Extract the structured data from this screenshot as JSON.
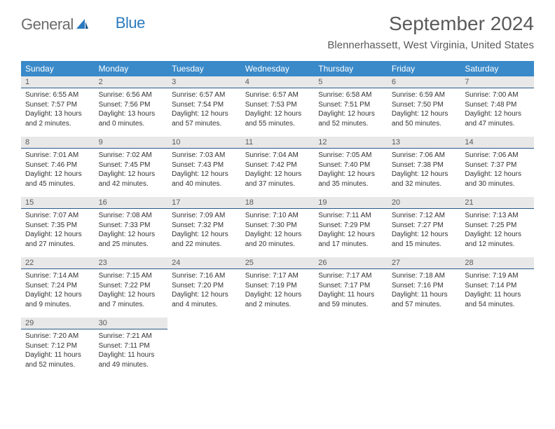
{
  "logo": {
    "text1": "General",
    "text2": "Blue"
  },
  "title": "September 2024",
  "location": "Blennerhassett, West Virginia, United States",
  "colors": {
    "header_bg": "#3a8ac9",
    "header_text": "#ffffff",
    "daynum_bg": "#e8e8e8",
    "daynum_border": "#2a5a8a",
    "text": "#333333",
    "title_text": "#5a5a5a",
    "logo_gray": "#6b6b6b",
    "logo_blue": "#2a7abf"
  },
  "weekdays": [
    "Sunday",
    "Monday",
    "Tuesday",
    "Wednesday",
    "Thursday",
    "Friday",
    "Saturday"
  ],
  "days": [
    {
      "n": 1,
      "sr": "6:55 AM",
      "ss": "7:57 PM",
      "dl": "13 hours and 2 minutes."
    },
    {
      "n": 2,
      "sr": "6:56 AM",
      "ss": "7:56 PM",
      "dl": "13 hours and 0 minutes."
    },
    {
      "n": 3,
      "sr": "6:57 AM",
      "ss": "7:54 PM",
      "dl": "12 hours and 57 minutes."
    },
    {
      "n": 4,
      "sr": "6:57 AM",
      "ss": "7:53 PM",
      "dl": "12 hours and 55 minutes."
    },
    {
      "n": 5,
      "sr": "6:58 AM",
      "ss": "7:51 PM",
      "dl": "12 hours and 52 minutes."
    },
    {
      "n": 6,
      "sr": "6:59 AM",
      "ss": "7:50 PM",
      "dl": "12 hours and 50 minutes."
    },
    {
      "n": 7,
      "sr": "7:00 AM",
      "ss": "7:48 PM",
      "dl": "12 hours and 47 minutes."
    },
    {
      "n": 8,
      "sr": "7:01 AM",
      "ss": "7:46 PM",
      "dl": "12 hours and 45 minutes."
    },
    {
      "n": 9,
      "sr": "7:02 AM",
      "ss": "7:45 PM",
      "dl": "12 hours and 42 minutes."
    },
    {
      "n": 10,
      "sr": "7:03 AM",
      "ss": "7:43 PM",
      "dl": "12 hours and 40 minutes."
    },
    {
      "n": 11,
      "sr": "7:04 AM",
      "ss": "7:42 PM",
      "dl": "12 hours and 37 minutes."
    },
    {
      "n": 12,
      "sr": "7:05 AM",
      "ss": "7:40 PM",
      "dl": "12 hours and 35 minutes."
    },
    {
      "n": 13,
      "sr": "7:06 AM",
      "ss": "7:38 PM",
      "dl": "12 hours and 32 minutes."
    },
    {
      "n": 14,
      "sr": "7:06 AM",
      "ss": "7:37 PM",
      "dl": "12 hours and 30 minutes."
    },
    {
      "n": 15,
      "sr": "7:07 AM",
      "ss": "7:35 PM",
      "dl": "12 hours and 27 minutes."
    },
    {
      "n": 16,
      "sr": "7:08 AM",
      "ss": "7:33 PM",
      "dl": "12 hours and 25 minutes."
    },
    {
      "n": 17,
      "sr": "7:09 AM",
      "ss": "7:32 PM",
      "dl": "12 hours and 22 minutes."
    },
    {
      "n": 18,
      "sr": "7:10 AM",
      "ss": "7:30 PM",
      "dl": "12 hours and 20 minutes."
    },
    {
      "n": 19,
      "sr": "7:11 AM",
      "ss": "7:29 PM",
      "dl": "12 hours and 17 minutes."
    },
    {
      "n": 20,
      "sr": "7:12 AM",
      "ss": "7:27 PM",
      "dl": "12 hours and 15 minutes."
    },
    {
      "n": 21,
      "sr": "7:13 AM",
      "ss": "7:25 PM",
      "dl": "12 hours and 12 minutes."
    },
    {
      "n": 22,
      "sr": "7:14 AM",
      "ss": "7:24 PM",
      "dl": "12 hours and 9 minutes."
    },
    {
      "n": 23,
      "sr": "7:15 AM",
      "ss": "7:22 PM",
      "dl": "12 hours and 7 minutes."
    },
    {
      "n": 24,
      "sr": "7:16 AM",
      "ss": "7:20 PM",
      "dl": "12 hours and 4 minutes."
    },
    {
      "n": 25,
      "sr": "7:17 AM",
      "ss": "7:19 PM",
      "dl": "12 hours and 2 minutes."
    },
    {
      "n": 26,
      "sr": "7:17 AM",
      "ss": "7:17 PM",
      "dl": "11 hours and 59 minutes."
    },
    {
      "n": 27,
      "sr": "7:18 AM",
      "ss": "7:16 PM",
      "dl": "11 hours and 57 minutes."
    },
    {
      "n": 28,
      "sr": "7:19 AM",
      "ss": "7:14 PM",
      "dl": "11 hours and 54 minutes."
    },
    {
      "n": 29,
      "sr": "7:20 AM",
      "ss": "7:12 PM",
      "dl": "11 hours and 52 minutes."
    },
    {
      "n": 30,
      "sr": "7:21 AM",
      "ss": "7:11 PM",
      "dl": "11 hours and 49 minutes."
    }
  ],
  "labels": {
    "sunrise": "Sunrise:",
    "sunset": "Sunset:",
    "daylight": "Daylight:"
  },
  "layout": {
    "first_day_column": 0,
    "rows": 5,
    "cols": 7
  }
}
